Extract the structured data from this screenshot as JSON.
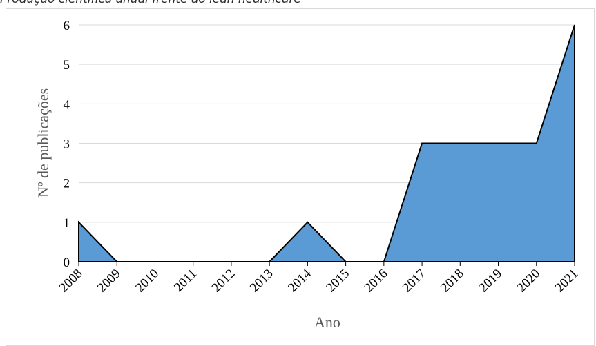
{
  "caption": "Produção científica anual frente ao lean healthcare",
  "colors": {
    "area_fill": "#5b9bd5",
    "area_stroke": "#000000",
    "grid": "#d9d9d9",
    "axis": "#000000"
  },
  "chart_data": {
    "type": "area",
    "title": "",
    "xlabel": "Ano",
    "ylabel": "Nº de publicações",
    "x": [
      "2008",
      "2009",
      "2010",
      "2011",
      "2012",
      "2013",
      "2014",
      "2015",
      "2016",
      "2017",
      "2018",
      "2019",
      "2020",
      "2021"
    ],
    "values": [
      1,
      0,
      0,
      0,
      0,
      0,
      1,
      0,
      0,
      3,
      3,
      3,
      3,
      6
    ],
    "ylim": [
      0,
      6
    ],
    "yticks": [
      "0",
      "1",
      "2",
      "3",
      "4",
      "5",
      "6"
    ],
    "grid": true,
    "legend": "none"
  }
}
